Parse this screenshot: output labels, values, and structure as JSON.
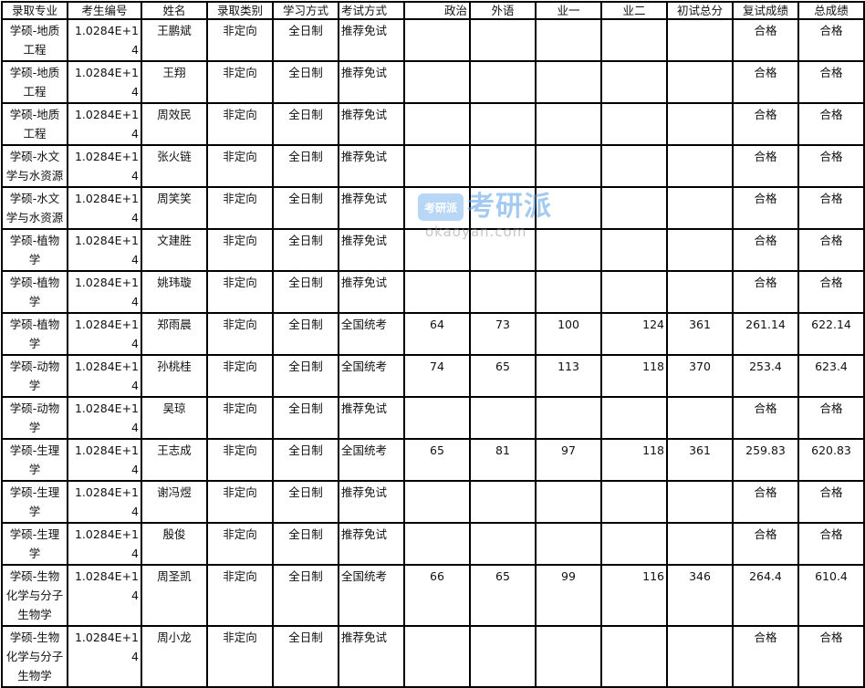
{
  "headers": [
    "录取专业",
    "考生编号",
    "姓名",
    "录取类别",
    "学习方式",
    "考试方式",
    "政治",
    "外语",
    "业一",
    "业二",
    "初试总分",
    "复试成绩",
    "总成绩"
  ],
  "rows": [
    [
      "学硕-地质工程",
      "1.0284E+14",
      "王鹏斌",
      "非定向",
      "全日制",
      "推荐免试",
      "",
      "",
      "",
      "",
      "",
      "合格",
      "合格"
    ],
    [
      "学硕-地质工程",
      "1.0284E+14",
      "王翔",
      "非定向",
      "全日制",
      "推荐免试",
      "",
      "",
      "",
      "",
      "",
      "合格",
      "合格"
    ],
    [
      "学硕-地质工程",
      "1.0284E+14",
      "周效民",
      "非定向",
      "全日制",
      "推荐免试",
      "",
      "",
      "",
      "",
      "",
      "合格",
      "合格"
    ],
    [
      "学硕-水文学与水资源",
      "1.0284E+14",
      "张火链",
      "非定向",
      "全日制",
      "推荐免试",
      "",
      "",
      "",
      "",
      "",
      "合格",
      "合格"
    ],
    [
      "学硕-水文学与水资源",
      "1.0284E+14",
      "周笑笑",
      "非定向",
      "全日制",
      "推荐免试",
      "",
      "",
      "",
      "",
      "",
      "合格",
      "合格"
    ],
    [
      "学硕-植物学",
      "1.0284E+14",
      "文建胜",
      "非定向",
      "全日制",
      "推荐免试",
      "",
      "",
      "",
      "",
      "",
      "合格",
      "合格"
    ],
    [
      "学硕-植物学",
      "1.0284E+14",
      "姚玮璇",
      "非定向",
      "全日制",
      "推荐免试",
      "",
      "",
      "",
      "",
      "",
      "合格",
      "合格"
    ],
    [
      "学硕-植物学",
      "1.0284E+14",
      "郑雨晨",
      "非定向",
      "全日制",
      "全国统考",
      "64",
      "73",
      "100",
      "124",
      "361",
      "261.14",
      "622.14"
    ],
    [
      "学硕-动物学",
      "1.0284E+14",
      "孙桃桂",
      "非定向",
      "全日制",
      "全国统考",
      "74",
      "65",
      "113",
      "118",
      "370",
      "253.4",
      "623.4"
    ],
    [
      "学硕-动物学",
      "1.0284E+14",
      "吴琼",
      "非定向",
      "全日制",
      "推荐免试",
      "",
      "",
      "",
      "",
      "",
      "合格",
      "合格"
    ],
    [
      "学硕-生理学",
      "1.0284E+14",
      "王志成",
      "非定向",
      "全日制",
      "全国统考",
      "65",
      "81",
      "97",
      "118",
      "361",
      "259.83",
      "620.83"
    ],
    [
      "学硕-生理学",
      "1.0284E+14",
      "谢冯煜",
      "非定向",
      "全日制",
      "推荐免试",
      "",
      "",
      "",
      "",
      "",
      "合格",
      "合格"
    ],
    [
      "学硕-生理学",
      "1.0284E+14",
      "殷俊",
      "非定向",
      "全日制",
      "推荐免试",
      "",
      "",
      "",
      "",
      "",
      "合格",
      "合格"
    ],
    [
      "学硕-生物化学与分子生物学",
      "1.0284E+14",
      "周圣凯",
      "非定向",
      "全日制",
      "全国统考",
      "66",
      "65",
      "99",
      "116",
      "346",
      "264.4",
      "610.4"
    ],
    [
      "学硕-生物化学与分子生物学",
      "1.0284E+14",
      "周小龙",
      "非定向",
      "全日制",
      "推荐免试",
      "",
      "",
      "",
      "",
      "",
      "合格",
      "合格"
    ]
  ],
  "watermark": {
    "badge": "考研派",
    "brand": "考研派",
    "url": "okaoyan.com"
  }
}
